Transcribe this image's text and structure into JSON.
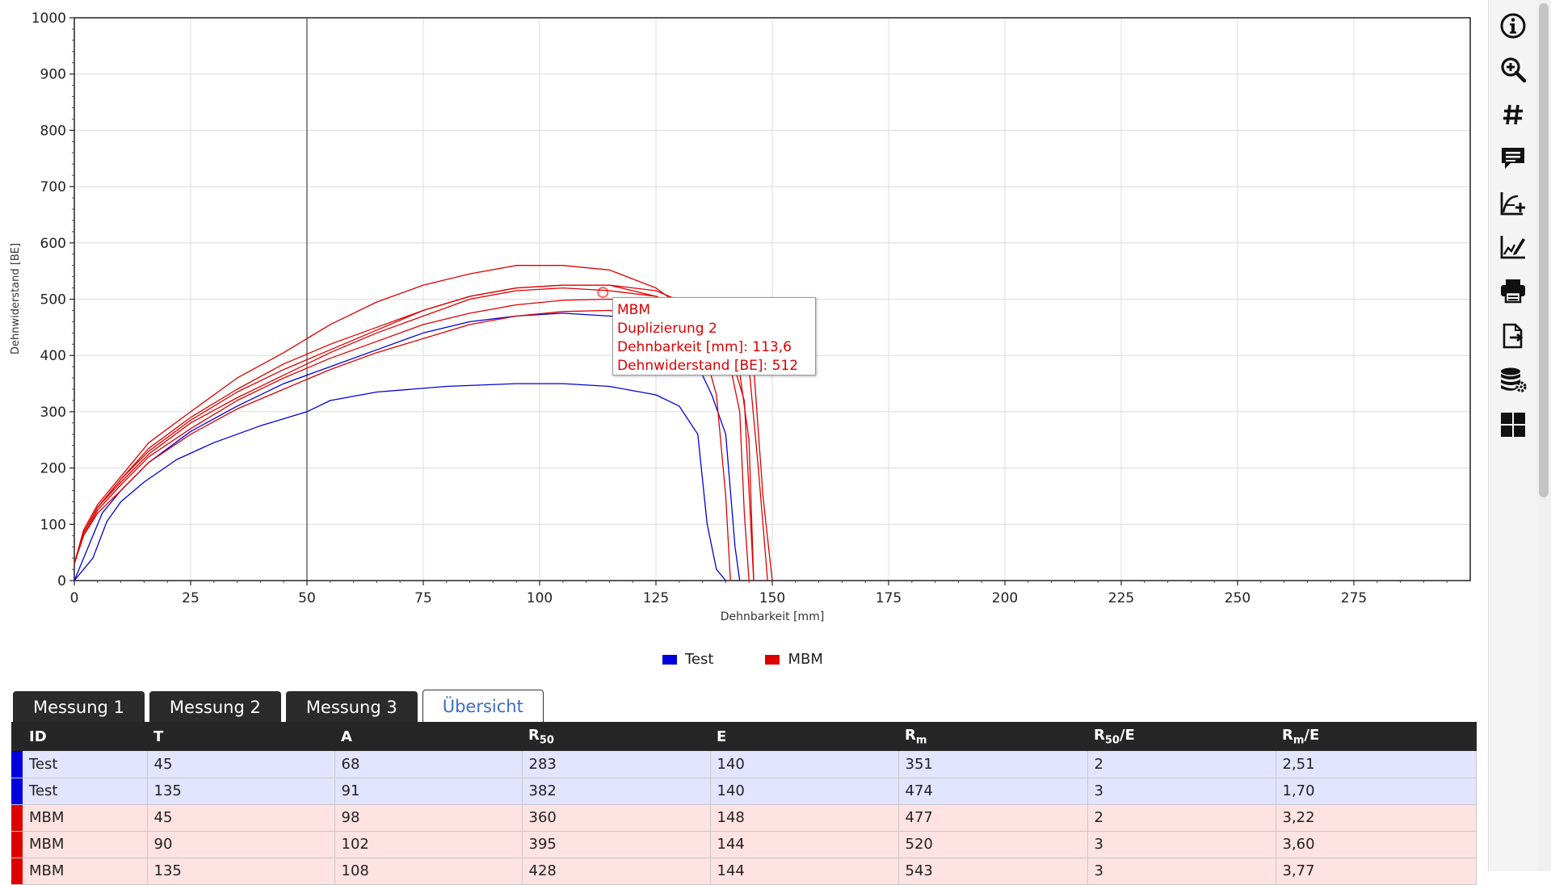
{
  "chart_data": {
    "type": "line",
    "title": "",
    "xlabel": "Dehnbarkeit [mm]",
    "ylabel": "Dehnwiderstand [BE]",
    "xlim": [
      0,
      300
    ],
    "ylim": [
      0,
      1000
    ],
    "x_ticks": [
      "0",
      "25",
      "50",
      "75",
      "100",
      "125",
      "150",
      "175",
      "200",
      "225",
      "250",
      "275"
    ],
    "y_ticks": [
      "0",
      "100",
      "200",
      "300",
      "400",
      "500",
      "600",
      "700",
      "800",
      "900",
      "1000"
    ],
    "cursor_x": 50,
    "grid": true,
    "legend": "bottom",
    "series": [
      {
        "name": "Test",
        "color": "#0000dd",
        "x": [
          0,
          4,
          7,
          10,
          15,
          22,
          30,
          40,
          50,
          55,
          65,
          80,
          95,
          105,
          115,
          125,
          130,
          134,
          136,
          138,
          140
        ],
        "y": [
          0,
          40,
          105,
          140,
          175,
          215,
          245,
          275,
          300,
          320,
          335,
          345,
          350,
          350,
          345,
          330,
          310,
          260,
          100,
          20,
          0
        ]
      },
      {
        "name": "Test",
        "color": "#0000dd",
        "x": [
          0,
          3,
          6,
          10,
          16,
          25,
          35,
          45,
          55,
          65,
          75,
          85,
          95,
          105,
          115,
          122,
          128,
          133,
          137,
          140,
          142,
          143
        ],
        "y": [
          0,
          60,
          120,
          160,
          210,
          265,
          310,
          350,
          380,
          410,
          440,
          460,
          470,
          475,
          470,
          465,
          450,
          400,
          330,
          260,
          60,
          0
        ]
      },
      {
        "name": "MBM",
        "color": "#dd0000",
        "x": [
          0,
          2,
          5,
          10,
          16,
          25,
          35,
          45,
          55,
          65,
          75,
          85,
          95,
          105,
          115,
          125,
          135,
          138,
          140,
          141
        ],
        "y": [
          30,
          80,
          120,
          160,
          210,
          260,
          305,
          340,
          375,
          405,
          430,
          455,
          470,
          478,
          480,
          470,
          420,
          330,
          150,
          0
        ]
      },
      {
        "name": "MBM",
        "color": "#dd0000",
        "x": [
          0,
          2,
          5,
          10,
          16,
          25,
          35,
          45,
          55,
          65,
          75,
          85,
          95,
          105,
          115,
          125,
          135,
          140,
          143,
          144,
          145
        ],
        "y": [
          30,
          85,
          130,
          175,
          225,
          280,
          325,
          365,
          405,
          440,
          470,
          500,
          515,
          520,
          515,
          505,
          470,
          420,
          300,
          120,
          0
        ]
      },
      {
        "name": "MBM",
        "color": "#dd0000",
        "x": [
          0,
          2,
          5,
          10,
          16,
          25,
          35,
          45,
          55,
          65,
          75,
          85,
          95,
          105,
          115,
          125,
          135,
          142,
          145,
          146
        ],
        "y": [
          30,
          85,
          130,
          180,
          230,
          285,
          335,
          375,
          410,
          445,
          480,
          505,
          520,
          525,
          525,
          515,
          480,
          430,
          250,
          0
        ]
      },
      {
        "name": "MBM",
        "color": "#dd0000",
        "x": [
          0,
          2,
          5,
          10,
          16,
          25,
          35,
          45,
          55,
          65,
          75,
          85,
          95,
          105,
          115,
          125,
          135,
          142,
          145,
          147,
          149
        ],
        "y": [
          30,
          90,
          135,
          185,
          245,
          300,
          360,
          405,
          455,
          495,
          525,
          545,
          560,
          560,
          552,
          520,
          460,
          420,
          380,
          200,
          0
        ]
      },
      {
        "name": "MBM",
        "color": "#dd0000",
        "x": [
          0,
          2,
          5,
          10,
          16,
          25,
          35,
          45,
          55,
          65,
          75,
          85,
          95,
          105,
          115,
          125,
          135,
          142,
          146,
          148,
          150
        ],
        "y": [
          30,
          85,
          130,
          180,
          235,
          290,
          340,
          385,
          420,
          450,
          480,
          505,
          520,
          525,
          525,
          505,
          470,
          430,
          380,
          150,
          0
        ]
      },
      {
        "name": "MBM",
        "color": "#dd0000",
        "x": [
          0,
          2,
          5,
          10,
          16,
          25,
          35,
          45,
          55,
          65,
          75,
          85,
          95,
          105,
          115,
          125,
          135,
          140,
          144,
          146
        ],
        "y": [
          30,
          80,
          125,
          170,
          220,
          270,
          320,
          360,
          395,
          425,
          455,
          475,
          490,
          498,
          500,
          495,
          470,
          430,
          320,
          0
        ]
      }
    ],
    "highlight": {
      "x": 113.6,
      "y": 512
    }
  },
  "tooltip": {
    "lines": [
      "MBM",
      "Duplizierung 2",
      "Dehnbarkeit [mm]: 113,6",
      "Dehnwiderstand [BE]: 512"
    ]
  },
  "legend": {
    "items": [
      {
        "label": "Test",
        "color": "#0000dd"
      },
      {
        "label": "MBM",
        "color": "#dd0000"
      }
    ]
  },
  "tabs": [
    {
      "label": "Messung 1",
      "active": false
    },
    {
      "label": "Messung 2",
      "active": false
    },
    {
      "label": "Messung 3",
      "active": false
    },
    {
      "label": "Übersicht",
      "active": true
    }
  ],
  "table": {
    "headers": [
      {
        "main": "ID",
        "sub": ""
      },
      {
        "main": "T",
        "sub": ""
      },
      {
        "main": "A",
        "sub": ""
      },
      {
        "main": "R",
        "sub": "50"
      },
      {
        "main": "E",
        "sub": ""
      },
      {
        "main": "R",
        "sub": "m"
      },
      {
        "main": "R",
        "sub": "50",
        "after": "/E"
      },
      {
        "main": "R",
        "sub": "m",
        "after": "/E"
      }
    ],
    "rows": [
      {
        "group": "blue",
        "cells": [
          "Test",
          "45",
          "68",
          "283",
          "140",
          "351",
          "2",
          "2,51"
        ]
      },
      {
        "group": "blue",
        "cells": [
          "Test",
          "135",
          "91",
          "382",
          "140",
          "474",
          "3",
          "1,70"
        ]
      },
      {
        "group": "red",
        "cells": [
          "MBM",
          "45",
          "98",
          "360",
          "148",
          "477",
          "2",
          "3,22"
        ]
      },
      {
        "group": "red",
        "cells": [
          "MBM",
          "90",
          "102",
          "395",
          "144",
          "520",
          "3",
          "3,60"
        ]
      },
      {
        "group": "red",
        "cells": [
          "MBM",
          "135",
          "108",
          "428",
          "144",
          "543",
          "3",
          "3,77"
        ]
      }
    ]
  },
  "toolbar": {
    "icons": [
      "info-icon",
      "zoom-in-icon",
      "hash-icon",
      "comment-icon",
      "add-curve-icon",
      "chart-edit-icon",
      "print-icon",
      "export-icon",
      "database-settings-icon",
      "dashboard-icon"
    ]
  }
}
